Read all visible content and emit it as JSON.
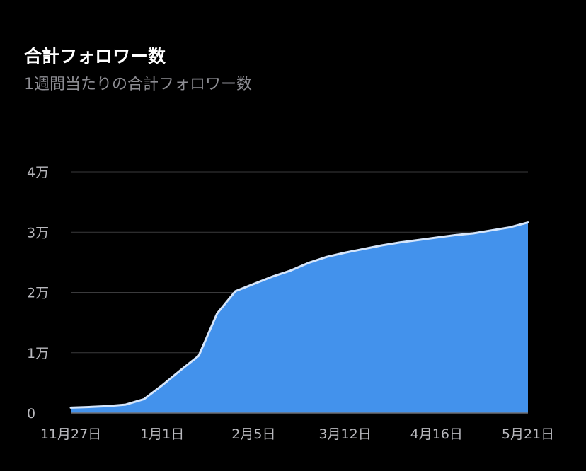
{
  "header": {
    "title": "合計フォロワー数",
    "subtitle": "1週間当たりの合計フォロワー数"
  },
  "colors": {
    "background": "#000000",
    "area_fill": "#4392ec",
    "line": "#d6e6fb",
    "grid": "#3a3a3c",
    "baseline": "#6e6e73",
    "tick_text": "#b9b9be"
  },
  "chart_data": {
    "type": "area",
    "title": "合計フォロワー数",
    "subtitle": "1週間当たりの合計フォロワー数",
    "xlabel": "",
    "ylabel": "",
    "x_tick_labels": [
      "11月27日",
      "1月1日",
      "2月5日",
      "3月12日",
      "4月16日",
      "5月21日"
    ],
    "y_tick_labels": [
      "0",
      "1万",
      "2万",
      "3万",
      "4万"
    ],
    "y_ticks": [
      0,
      10000,
      20000,
      30000,
      40000
    ],
    "ylim": [
      0,
      40000
    ],
    "grid": true,
    "legend": "none",
    "x": [
      "11月27日",
      "12月4日",
      "12月11日",
      "12月18日",
      "12月25日",
      "1月1日",
      "1月8日",
      "1月15日",
      "1月22日",
      "1月29日",
      "2月5日",
      "2月12日",
      "2月19日",
      "2月26日",
      "3月5日",
      "3月12日",
      "3月19日",
      "3月26日",
      "4月2日",
      "4月9日",
      "4月16日",
      "4月23日",
      "4月30日",
      "5月7日",
      "5月14日",
      "5月21日"
    ],
    "series": [
      {
        "values": [
          900,
          1000,
          1150,
          1400,
          2300,
          4600,
          7100,
          9500,
          16500,
          20200,
          21400,
          22600,
          23600,
          24900,
          25900,
          26600,
          27200,
          27800,
          28300,
          28700,
          29100,
          29500,
          29800,
          30300,
          30800,
          31600
        ]
      }
    ]
  }
}
